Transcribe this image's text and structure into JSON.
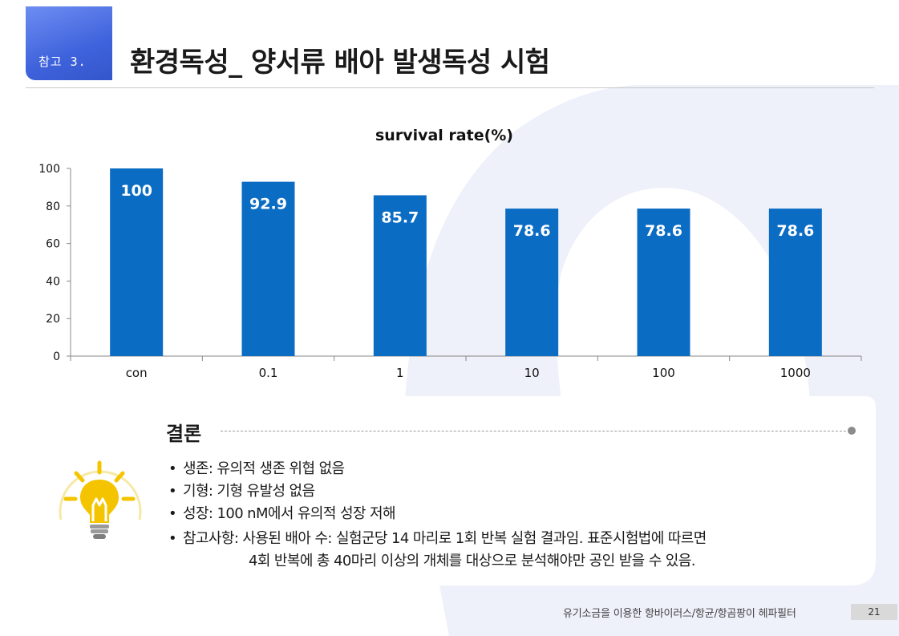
{
  "header": {
    "badge": "참고 3.",
    "title": "환경독성_ 양서류 배아 발생독성 시험"
  },
  "chart_data": {
    "type": "bar",
    "title": "survival rate(%)",
    "categories": [
      "con",
      "0.1",
      "1",
      "10",
      "100",
      "1000"
    ],
    "values": [
      100,
      92.9,
      85.7,
      78.6,
      78.6,
      78.6
    ],
    "data_labels": [
      "100",
      "92.9",
      "85.7",
      "78.6",
      "78.6",
      "78.6"
    ],
    "y_ticks": [
      "0",
      "20",
      "40",
      "60",
      "80",
      "100"
    ],
    "ylim": [
      0,
      100
    ],
    "grid": false,
    "legend": "none",
    "bar_color": "#0b6cc4",
    "label_color": "#ffffff"
  },
  "conclusion": {
    "heading": "결론",
    "items": [
      "생존: 유의적 생존 위협 없음",
      "기형: 기형 유발성 없음",
      "성장: 100 nM에서 유의적 성장 저해"
    ],
    "note_line1": "참고사항: 사용된 배아 수: 실험군당 14 마리로 1회 반복 실험 결과임. 표준시험법에 따르면",
    "note_line2": "4회 반복에 총 40마리 이상의 개체를 대상으로 분석해야만 공인 받을 수 있음.",
    "bullet": "•",
    "icon": "lightbulb-icon"
  },
  "footer": {
    "text": "유기소금을 이용한 항바이러스/항균/항곰팡이 헤파필터",
    "page": "21"
  },
  "colors": {
    "accent": "#3f63dc",
    "bar": "#0b6cc4",
    "bulb": "#f5c400"
  }
}
